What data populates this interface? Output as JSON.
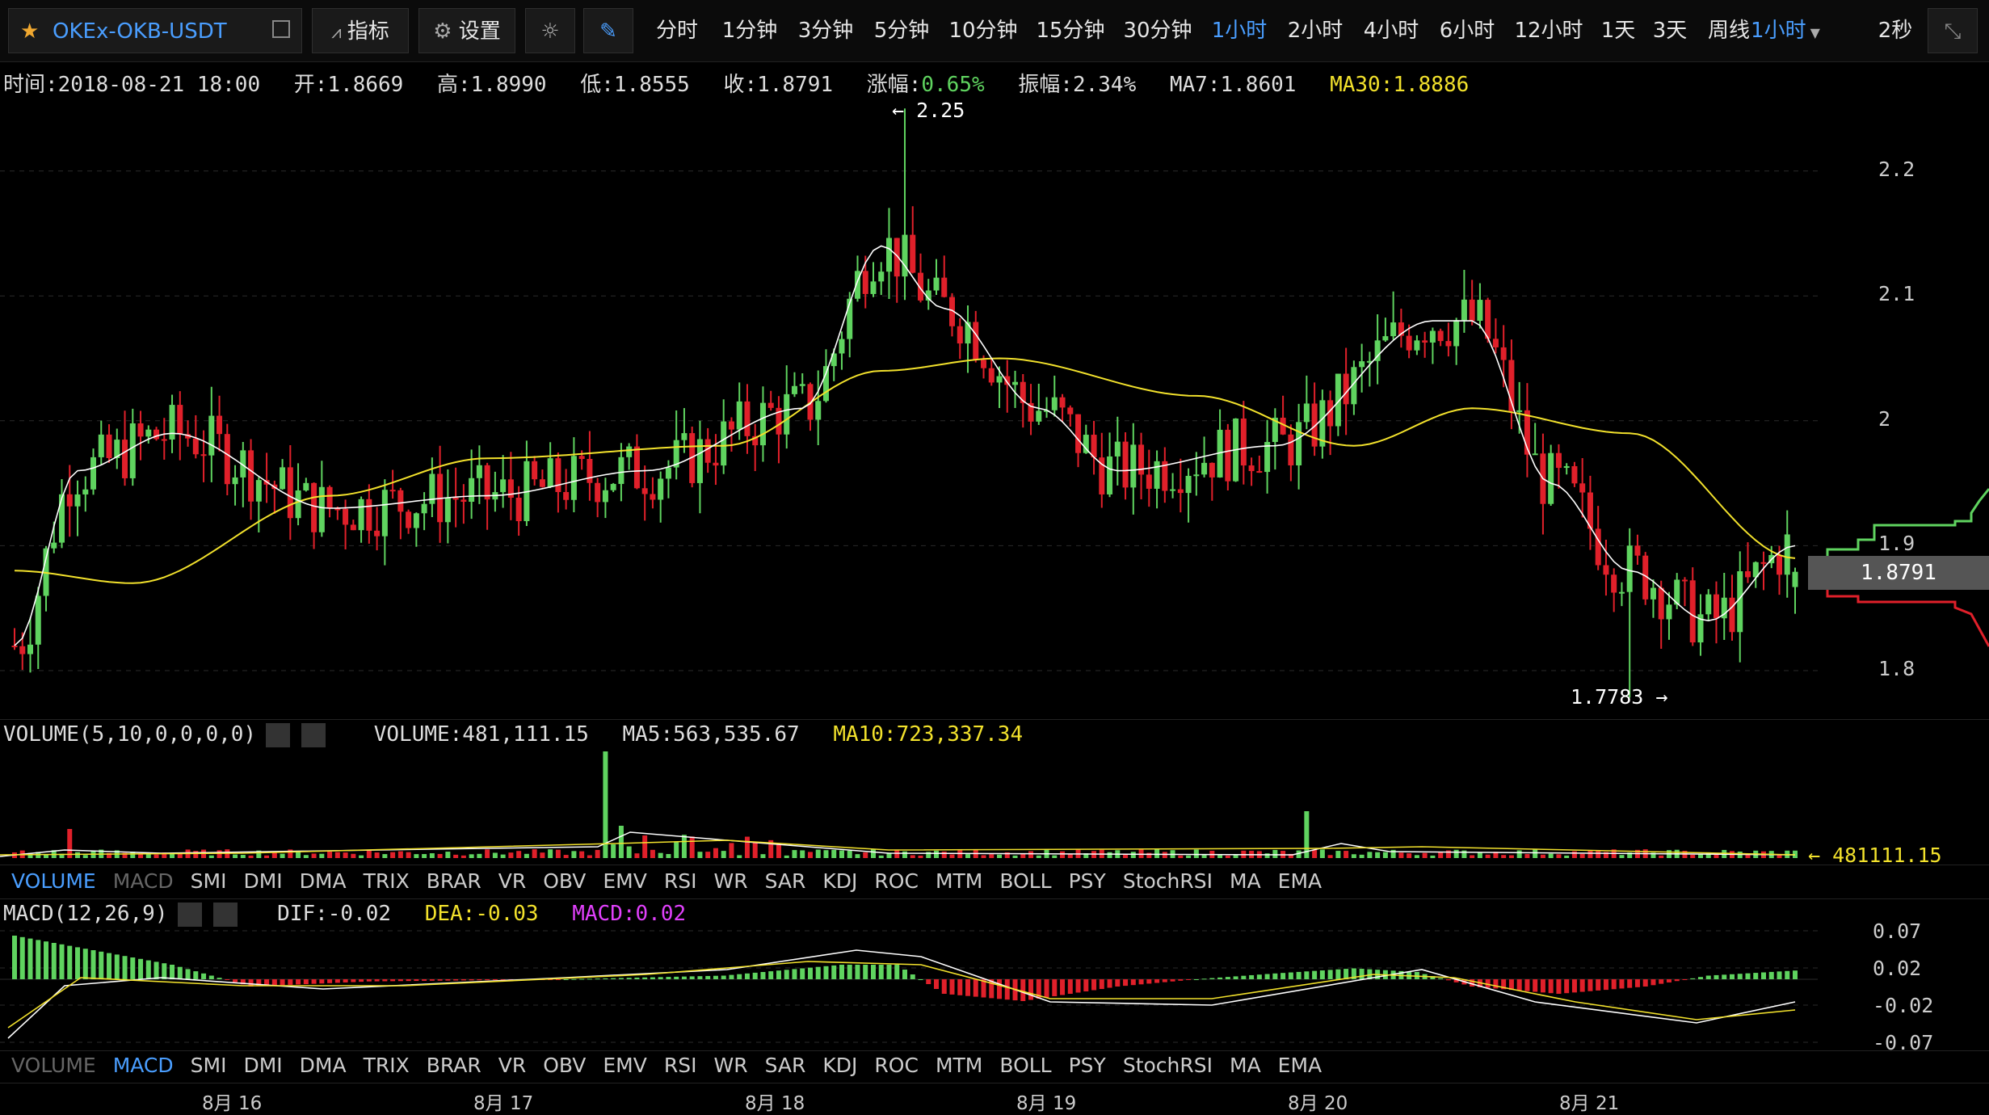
{
  "pair": "OKEx-OKB-USDT",
  "toolbar": {
    "indicators": "指标",
    "settings": "设置",
    "intervals": [
      "分时",
      "1分钟",
      "3分钟",
      "5分钟",
      "10分钟",
      "15分钟",
      "30分钟",
      "1小时",
      "2小时",
      "4小时",
      "6小时",
      "12小时",
      "1天",
      "3天",
      "周线"
    ],
    "active_interval": "1小时",
    "dropdown": "1小时",
    "refresh": "2秒"
  },
  "info": {
    "time": "时间:2018-08-21 18:00",
    "open": "开:1.8669",
    "high": "高:1.8990",
    "low": "低:1.8555",
    "close": "收:1.8791",
    "change_label": "涨幅:",
    "change_value": "0.65%",
    "amplitude": "振幅:2.34%",
    "ma7": "MA7:1.8601",
    "ma30": "MA30:1.8886"
  },
  "price_axis": [
    "2.2",
    "2.1",
    "2",
    "1.9",
    "1.8"
  ],
  "current_price": "1.8791",
  "annotations": {
    "high": "← 2.25",
    "low": "1.7783 →"
  },
  "volume": {
    "title": "VOLUME(5,10,0,0,0,0)",
    "volume": "VOLUME:481,111.15",
    "ma5": "MA5:563,535.67",
    "ma10": "MA10:723,337.34",
    "last": "← 481111.15"
  },
  "indicator_tabs": [
    "VOLUME",
    "MACD",
    "SMI",
    "DMI",
    "DMA",
    "TRIX",
    "BRAR",
    "VR",
    "OBV",
    "EMV",
    "RSI",
    "WR",
    "SAR",
    "KDJ",
    "ROC",
    "MTM",
    "BOLL",
    "PSY",
    "StochRSI",
    "MA",
    "EMA"
  ],
  "macd": {
    "title": "MACD(12,26,9)",
    "dif": "DIF:-0.02",
    "dea": "DEA:-0.03",
    "macd": "MACD:0.02",
    "axis": [
      "0.07",
      "0.02",
      "-0.02",
      "-0.07"
    ]
  },
  "dates": [
    "8月 16",
    "8月 17",
    "8月 18",
    "8月 19",
    "8月 20",
    "8月 21"
  ],
  "colors": {
    "up": "#5fd35f",
    "down": "#e0202a",
    "ma7": "#ffffff",
    "ma30": "#f2e12c",
    "accent": "#4a9eff"
  },
  "chart_data": {
    "type": "candlestick",
    "x_labels": [
      "8月 16",
      "8月 17",
      "8月 18",
      "8月 19",
      "8月 20",
      "8月 21"
    ],
    "price_axis": [
      1.8,
      1.9,
      2.0,
      2.1,
      2.2
    ],
    "high": 2.25,
    "low": 1.7783,
    "last": {
      "time": "2018-08-21 18:00",
      "open": 1.8669,
      "high": 1.899,
      "low": 1.8555,
      "close": 1.8791
    },
    "ma7_anchors": [
      [
        0,
        1.82
      ],
      [
        8,
        1.96
      ],
      [
        20,
        1.99
      ],
      [
        40,
        1.93
      ],
      [
        60,
        1.94
      ],
      [
        80,
        1.96
      ],
      [
        100,
        2.01
      ],
      [
        110,
        2.14
      ],
      [
        118,
        2.09
      ],
      [
        130,
        2.01
      ],
      [
        140,
        1.96
      ],
      [
        160,
        1.98
      ],
      [
        180,
        2.08
      ],
      [
        185,
        2.08
      ],
      [
        195,
        1.95
      ],
      [
        205,
        1.88
      ],
      [
        215,
        1.84
      ],
      [
        226,
        1.9
      ]
    ],
    "ma30_anchors": [
      [
        0,
        1.88
      ],
      [
        15,
        1.87
      ],
      [
        40,
        1.94
      ],
      [
        60,
        1.97
      ],
      [
        90,
        1.98
      ],
      [
        110,
        2.04
      ],
      [
        125,
        2.05
      ],
      [
        150,
        2.02
      ],
      [
        170,
        1.98
      ],
      [
        185,
        2.01
      ],
      [
        205,
        1.99
      ],
      [
        226,
        1.89
      ]
    ],
    "macd_range": [
      -0.07,
      0.07
    ]
  }
}
